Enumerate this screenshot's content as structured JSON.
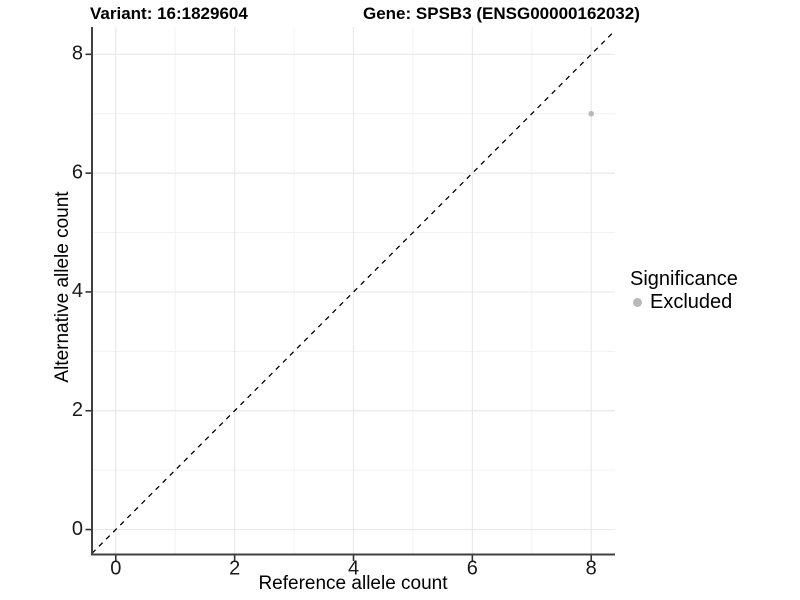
{
  "chart_data": {
    "type": "scatter",
    "title_variant": "Variant: 16:1829604",
    "title_gene": "Gene: SPSB3 (ENSG00000162032)",
    "xlabel": "Reference allele count",
    "ylabel": "Alternative allele count",
    "xlim": [
      -0.4,
      8.4
    ],
    "ylim": [
      -0.42,
      8.46
    ],
    "xticks": [
      0,
      2,
      4,
      6,
      8
    ],
    "yticks": [
      0,
      2,
      4,
      6,
      8
    ],
    "xminor": [
      1,
      3,
      5,
      7
    ],
    "yminor": [
      1,
      3,
      5,
      7
    ],
    "grid": true,
    "identity_line": {
      "slope": 1,
      "intercept": 0,
      "style": "dashed"
    },
    "series": [
      {
        "name": "Excluded",
        "color": "#b9b9b9",
        "points": [
          {
            "x": 8,
            "y": 7
          }
        ]
      }
    ],
    "legend": {
      "title": "Significance",
      "position": "right",
      "items": [
        {
          "label": "Excluded",
          "color": "#b9b9b9"
        }
      ]
    },
    "colors": {
      "background": "#ffffff",
      "grid_major": "#e9e9e9",
      "grid_minor": "#f2f2f2",
      "axis_line": "#404040",
      "tick_mark": "#333333",
      "tick_label": "#1a1a1a",
      "identity_line": "#000000",
      "title_text": "#000000"
    }
  }
}
